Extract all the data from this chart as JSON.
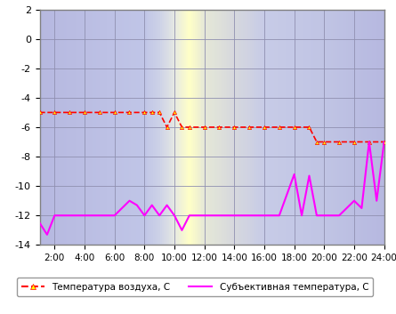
{
  "x_air": [
    1,
    2,
    3,
    4,
    5,
    6,
    7,
    8,
    8.5,
    9,
    9.5,
    10,
    10.5,
    11,
    12,
    13,
    14,
    15,
    16,
    17,
    18,
    19,
    19.5,
    20,
    21,
    22,
    23,
    24
  ],
  "y_air": [
    -5,
    -5,
    -5,
    -5,
    -5,
    -5,
    -5,
    -5,
    -5,
    -5,
    -6,
    -5,
    -6,
    -6,
    -6,
    -6,
    -6,
    -6,
    -6,
    -6,
    -6,
    -6,
    -7,
    -7,
    -7,
    -7,
    -7,
    -7
  ],
  "x_subj": [
    1,
    1.5,
    2,
    3,
    4,
    5,
    6,
    7,
    7.5,
    8,
    8.5,
    9,
    9.5,
    10,
    10.5,
    11,
    12,
    13,
    14,
    15,
    16,
    17,
    18,
    18.5,
    19,
    19.5,
    20,
    21,
    22,
    22.5,
    23,
    23.5,
    24
  ],
  "y_subj": [
    -12.5,
    -13.3,
    -12,
    -12,
    -12,
    -12,
    -12,
    -11,
    -11.3,
    -12,
    -11.3,
    -12,
    -11.3,
    -12,
    -13,
    -12,
    -12,
    -12,
    -12,
    -12,
    -12,
    -12,
    -9.2,
    -12,
    -9.3,
    -12,
    -12,
    -12,
    -11,
    -11.5,
    -7,
    -11,
    -7
  ],
  "xlim": [
    1,
    24
  ],
  "ylim": [
    -14,
    2
  ],
  "yticks": [
    2,
    0,
    -2,
    -4,
    -6,
    -8,
    -10,
    -12,
    -14
  ],
  "xticks": [
    2,
    4,
    6,
    8,
    10,
    12,
    14,
    16,
    18,
    20,
    22,
    24
  ],
  "xticklabels": [
    "2:00",
    "4:00",
    "6:00",
    "8:00",
    "10:00",
    "12:00",
    "14:00",
    "16:00",
    "18:00",
    "20:00",
    "22:00",
    "24:00"
  ],
  "air_color": "#ff0000",
  "subj_color": "#ff00ff",
  "air_label": "Температура воздуха, C",
  "subj_label": "Субъективная температура, C",
  "grid_color": "#9090b0",
  "border_color": "#808080",
  "bg_night": "#b0b4d8",
  "bg_day_yellow": "#ffffc0",
  "bg_transition": "#d0d4e8"
}
